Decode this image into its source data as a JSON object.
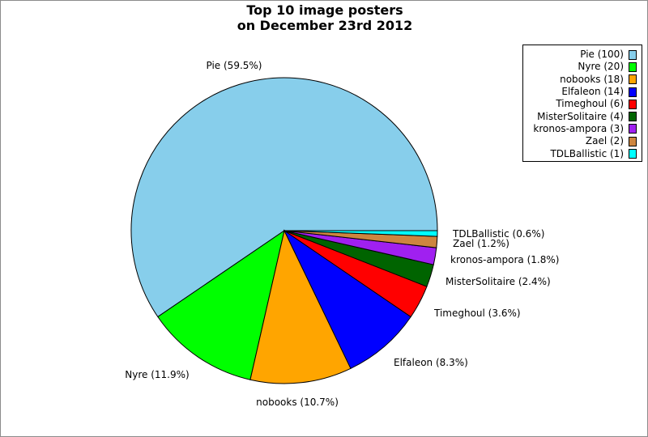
{
  "chart_data": {
    "type": "pie",
    "title": "Top 10 image posters",
    "subtitle": "on December 23rd 2012",
    "legend_position": "top-right",
    "start_angle_deg": 0,
    "direction": "counterclockwise",
    "slices": [
      {
        "name": "Pie",
        "value": 100,
        "percent_label": "Pie (59.5%)",
        "legend_label": "Pie (100)",
        "color": "#87ceeb"
      },
      {
        "name": "Nyre",
        "value": 20,
        "percent_label": "Nyre (11.9%)",
        "legend_label": "Nyre (20)",
        "color": "#00ff00"
      },
      {
        "name": "nobooks",
        "value": 18,
        "percent_label": "nobooks (10.7%)",
        "legend_label": "nobooks (18)",
        "color": "#ffa500"
      },
      {
        "name": "Elfaleon",
        "value": 14,
        "percent_label": "Elfaleon (8.3%)",
        "legend_label": "Elfaleon (14)",
        "color": "#0000ff"
      },
      {
        "name": "Timeghoul",
        "value": 6,
        "percent_label": "Timeghoul (3.6%)",
        "legend_label": "Timeghoul (6)",
        "color": "#ff0000"
      },
      {
        "name": "MisterSolitaire",
        "value": 4,
        "percent_label": "MisterSolitaire (2.4%)",
        "legend_label": "MisterSolitaire (4)",
        "color": "#006400"
      },
      {
        "name": "kronos-ampora",
        "value": 3,
        "percent_label": "kronos-ampora (1.8%)",
        "legend_label": "kronos-ampora (3)",
        "color": "#a020f0"
      },
      {
        "name": "Zael",
        "value": 2,
        "percent_label": "Zael (1.2%)",
        "legend_label": "Zael (2)",
        "color": "#cd853f"
      },
      {
        "name": "TDLBallistic",
        "value": 1,
        "percent_label": "TDLBallistic (0.6%)",
        "legend_label": "TDLBallistic (1)",
        "color": "#00ffff"
      }
    ]
  }
}
